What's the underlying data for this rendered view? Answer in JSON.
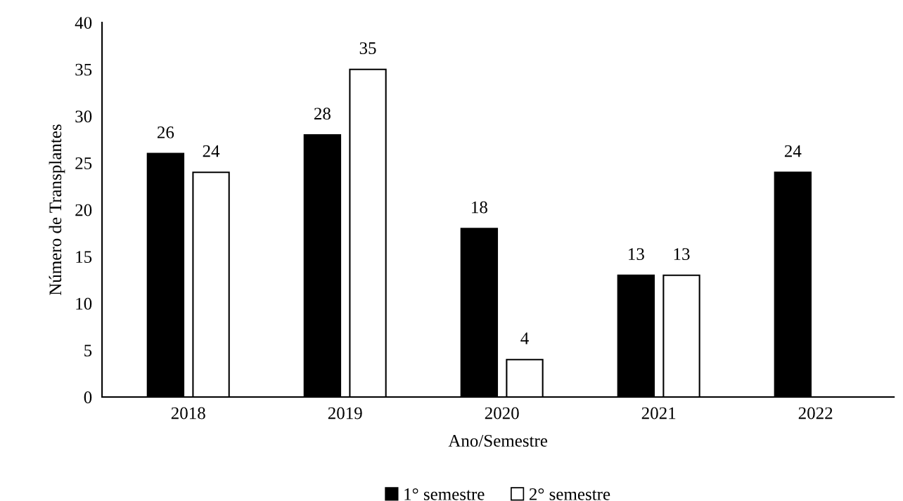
{
  "chart_data": {
    "type": "bar",
    "xlabel": "Ano/Semestre",
    "ylabel": "Número de Transplantes",
    "categories": [
      "2018",
      "2019",
      "2020",
      "2021",
      "2022"
    ],
    "series": [
      {
        "name": "1° semestre",
        "color": "#000000",
        "values": [
          26,
          28,
          18,
          13,
          24
        ]
      },
      {
        "name": "2° semestre",
        "color": "#ffffff",
        "values": [
          24,
          35,
          4,
          13,
          null
        ]
      }
    ],
    "ylim": [
      0,
      40
    ],
    "yticks": [
      0,
      5,
      10,
      15,
      20,
      25,
      30,
      35,
      40
    ],
    "grid": false,
    "legend": "bottom",
    "data_labels": true
  }
}
